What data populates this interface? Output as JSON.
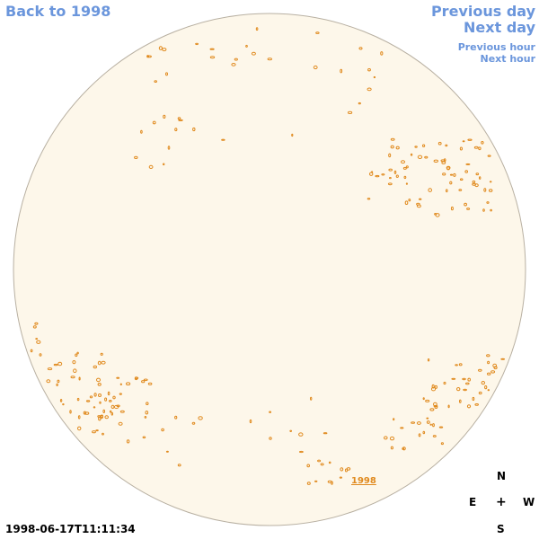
{
  "nav": {
    "back": "Back to 1998",
    "prev_day": "Previous day",
    "next_day": "Next day",
    "prev_hour": "Previous hour",
    "next_hour": "Next hour"
  },
  "compass": {
    "north": "N",
    "south": "S",
    "east": "E",
    "west": "W",
    "center": "+"
  },
  "timestamp": "1998-06-17T11:11:34",
  "year_label": "1998",
  "colors": {
    "nav": "#6b96dc",
    "disk_fill": "#fdf7ea",
    "disk_outline": "#b8b0a2",
    "contours": "#e08a1e"
  }
}
